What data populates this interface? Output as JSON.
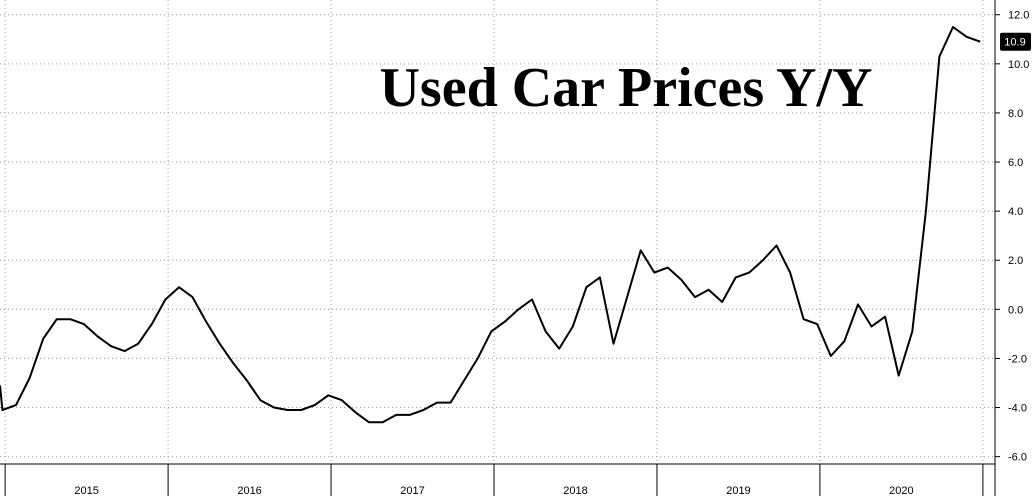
{
  "chart_data": {
    "type": "line",
    "title": "Used Car Prices Y/Y",
    "xlabel": "",
    "ylabel": "",
    "ylim": [
      -6.3,
      12.6
    ],
    "y_ticks": [
      "-6.0",
      "-4.0",
      "-2.0",
      "0.0",
      "2.0",
      "4.0",
      "6.0",
      "8.0",
      "10.0",
      "12.0"
    ],
    "x_ticks": [
      "2015",
      "2016",
      "2017",
      "2018",
      "2019",
      "2020"
    ],
    "grid": true,
    "y_axis_position": "right",
    "last_value_label": "10.9",
    "line_color": "#000000",
    "series": [
      {
        "name": "",
        "x": [
          "2014-11",
          "2014-12",
          "2015-01",
          "2015-02",
          "2015-03",
          "2015-04",
          "2015-05",
          "2015-06",
          "2015-07",
          "2015-08",
          "2015-09",
          "2015-10",
          "2015-11",
          "2015-12",
          "2016-01",
          "2016-02",
          "2016-03",
          "2016-04",
          "2016-05",
          "2016-06",
          "2016-07",
          "2016-08",
          "2016-09",
          "2016-10",
          "2016-11",
          "2016-12",
          "2017-01",
          "2017-02",
          "2017-03",
          "2017-04",
          "2017-05",
          "2017-06",
          "2017-07",
          "2017-08",
          "2017-09",
          "2017-10",
          "2017-11",
          "2017-12",
          "2018-01",
          "2018-02",
          "2018-03",
          "2018-04",
          "2018-05",
          "2018-06",
          "2018-07",
          "2018-08",
          "2018-09",
          "2018-10",
          "2018-11",
          "2018-12",
          "2019-01",
          "2019-02",
          "2019-03",
          "2019-04",
          "2019-05",
          "2019-06",
          "2019-07",
          "2019-08",
          "2019-09",
          "2019-10",
          "2019-11",
          "2019-12",
          "2020-01",
          "2020-02",
          "2020-03",
          "2020-04",
          "2020-05",
          "2020-06",
          "2020-07",
          "2020-08",
          "2020-09",
          "2020-10",
          "2020-11",
          "2020-12"
        ],
        "values": [
          -3.1,
          -4.1,
          -3.9,
          -2.8,
          -1.2,
          -0.4,
          -0.4,
          -0.6,
          -1.1,
          -1.5,
          -1.7,
          -1.4,
          -0.6,
          0.4,
          0.9,
          0.5,
          -0.5,
          -1.4,
          -2.2,
          -2.9,
          -3.7,
          -4.0,
          -4.1,
          -4.1,
          -3.9,
          -3.5,
          -3.7,
          -4.2,
          -4.6,
          -4.6,
          -4.3,
          -4.3,
          -4.1,
          -3.8,
          -3.8,
          -2.9,
          -2.0,
          -0.9,
          -0.5,
          0.0,
          0.4,
          -0.9,
          -1.6,
          -0.7,
          0.9,
          1.3,
          -1.4,
          0.5,
          2.4,
          1.5,
          1.7,
          1.2,
          0.5,
          0.8,
          0.3,
          1.3,
          1.5,
          2.0,
          2.6,
          1.5,
          -0.4,
          -0.6,
          -1.9,
          -1.3,
          0.2,
          -0.7,
          -0.3,
          -2.7,
          -0.9,
          4.0,
          10.3,
          11.5,
          11.1,
          10.9
        ]
      }
    ]
  }
}
